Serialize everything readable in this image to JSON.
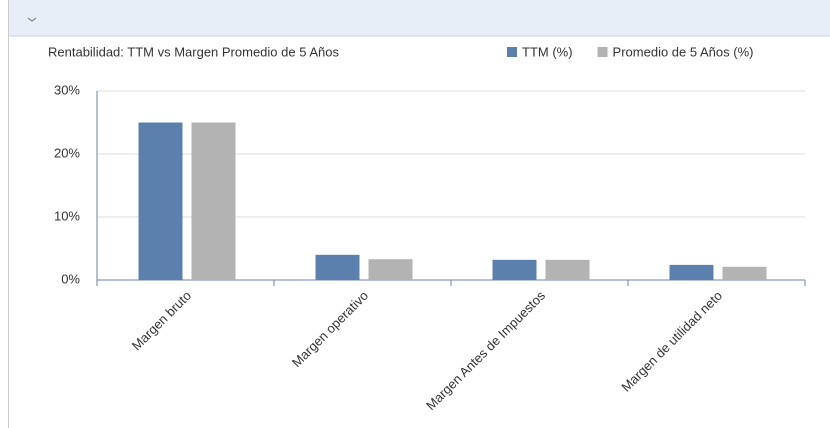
{
  "chart_data": {
    "type": "bar",
    "title": "Rentabilidad: TTM vs Margen Promedio de 5 Años",
    "categories": [
      "Margen bruto",
      "Margen operativo",
      "Margen Antes de Impuestos",
      "Margen de utilidad neto"
    ],
    "series": [
      {
        "name": "TTM (%)",
        "color": "#5b80ad",
        "values": [
          25,
          4.0,
          3.2,
          2.4
        ]
      },
      {
        "name": "Promedio de 5 Años (%)",
        "color": "#b3b3b3",
        "values": [
          25,
          3.3,
          3.2,
          2.1
        ]
      }
    ],
    "ylim": [
      0,
      30
    ],
    "yticks": [
      {
        "value": 0,
        "label": "0%"
      },
      {
        "value": 10,
        "label": "10%"
      },
      {
        "value": 20,
        "label": "20%"
      },
      {
        "value": 30,
        "label": "30%"
      }
    ],
    "grid": true,
    "legend": "top-right"
  }
}
